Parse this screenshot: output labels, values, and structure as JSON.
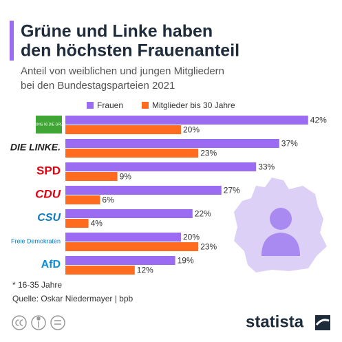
{
  "chart_data": {
    "type": "bar",
    "orientation": "horizontal",
    "title": [
      "Grüne und Linke haben",
      "den höchsten Frauenanteil"
    ],
    "subtitle": [
      "Anteil von weiblichen und jungen Mitgliedern",
      "bei den Bundestagsparteien 2021"
    ],
    "categories": [
      "BÜNDNIS 90 DIE GRÜNEN",
      "DIE LINKE.",
      "SPD",
      "CDU",
      "CSU",
      "Freie Demokraten",
      "AfD"
    ],
    "series": [
      {
        "name": "Frauen",
        "color": "#9b6bf2",
        "values": [
          42,
          37,
          33,
          27,
          22,
          20,
          19
        ],
        "value_labels": [
          "42%",
          "37%",
          "33%",
          "27%",
          "22%",
          "20%",
          "19%"
        ]
      },
      {
        "name": "Mitglieder bis 30 Jahre",
        "color": "#ff6b1f",
        "values": [
          20,
          23,
          9,
          6,
          4,
          23,
          12
        ],
        "value_labels": [
          "20%",
          "23%",
          "9%",
          "6%",
          "4%",
          "23%",
          "12%"
        ]
      }
    ],
    "footnote": "* 16-35 Jahre",
    "source": "Quelle: Oskar Niedermayer | bpb",
    "brand": "statista"
  }
}
